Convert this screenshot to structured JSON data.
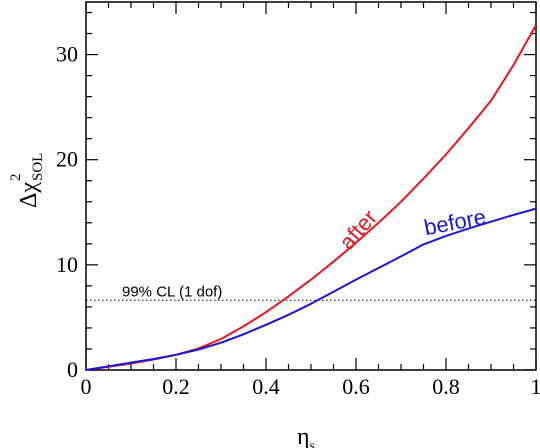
{
  "chart_data": {
    "type": "line",
    "xlabel_main": "η",
    "xlabel_sub": "s",
    "ylabel_main": "Δχ",
    "ylabel_sup": "2",
    "ylabel_sub": "SOL",
    "xlim": [
      0,
      1
    ],
    "ylim": [
      0,
      35
    ],
    "xticks": [
      0,
      0.2,
      0.4,
      0.6,
      0.8,
      1
    ],
    "xtick_labels": [
      "0",
      "0.2",
      "0.4",
      "0.6",
      "0.8",
      "1"
    ],
    "yticks": [
      0,
      10,
      20,
      30
    ],
    "ytick_labels": [
      "0",
      "10",
      "20",
      "30"
    ],
    "grid": false,
    "threshold": {
      "y": 6.63,
      "label": "99% CL (1 dof)",
      "style": "dotted"
    },
    "series": [
      {
        "name": "after",
        "color": "#e8141e",
        "x": [
          0,
          0.05,
          0.1,
          0.15,
          0.2,
          0.25,
          0.3,
          0.35,
          0.4,
          0.45,
          0.5,
          0.55,
          0.6,
          0.65,
          0.7,
          0.75,
          0.8,
          0.85,
          0.9,
          0.95,
          1.0
        ],
        "y": [
          0,
          0.3,
          0.62,
          1.0,
          1.45,
          2.05,
          2.95,
          4.15,
          5.5,
          7.0,
          8.6,
          10.3,
          12.1,
          14.0,
          16.0,
          18.2,
          20.5,
          23.0,
          25.6,
          29.0,
          32.8
        ]
      },
      {
        "name": "before",
        "color": "#1a14dc",
        "x": [
          0,
          0.05,
          0.1,
          0.15,
          0.2,
          0.25,
          0.3,
          0.35,
          0.4,
          0.45,
          0.5,
          0.55,
          0.6,
          0.65,
          0.7,
          0.75,
          0.8,
          0.85,
          0.9,
          0.95,
          1.0
        ],
        "y": [
          0,
          0.35,
          0.7,
          1.05,
          1.45,
          1.95,
          2.6,
          3.4,
          4.3,
          5.25,
          6.3,
          7.45,
          8.6,
          9.7,
          10.8,
          11.95,
          12.75,
          13.45,
          14.1,
          14.75,
          15.35
        ]
      }
    ]
  }
}
